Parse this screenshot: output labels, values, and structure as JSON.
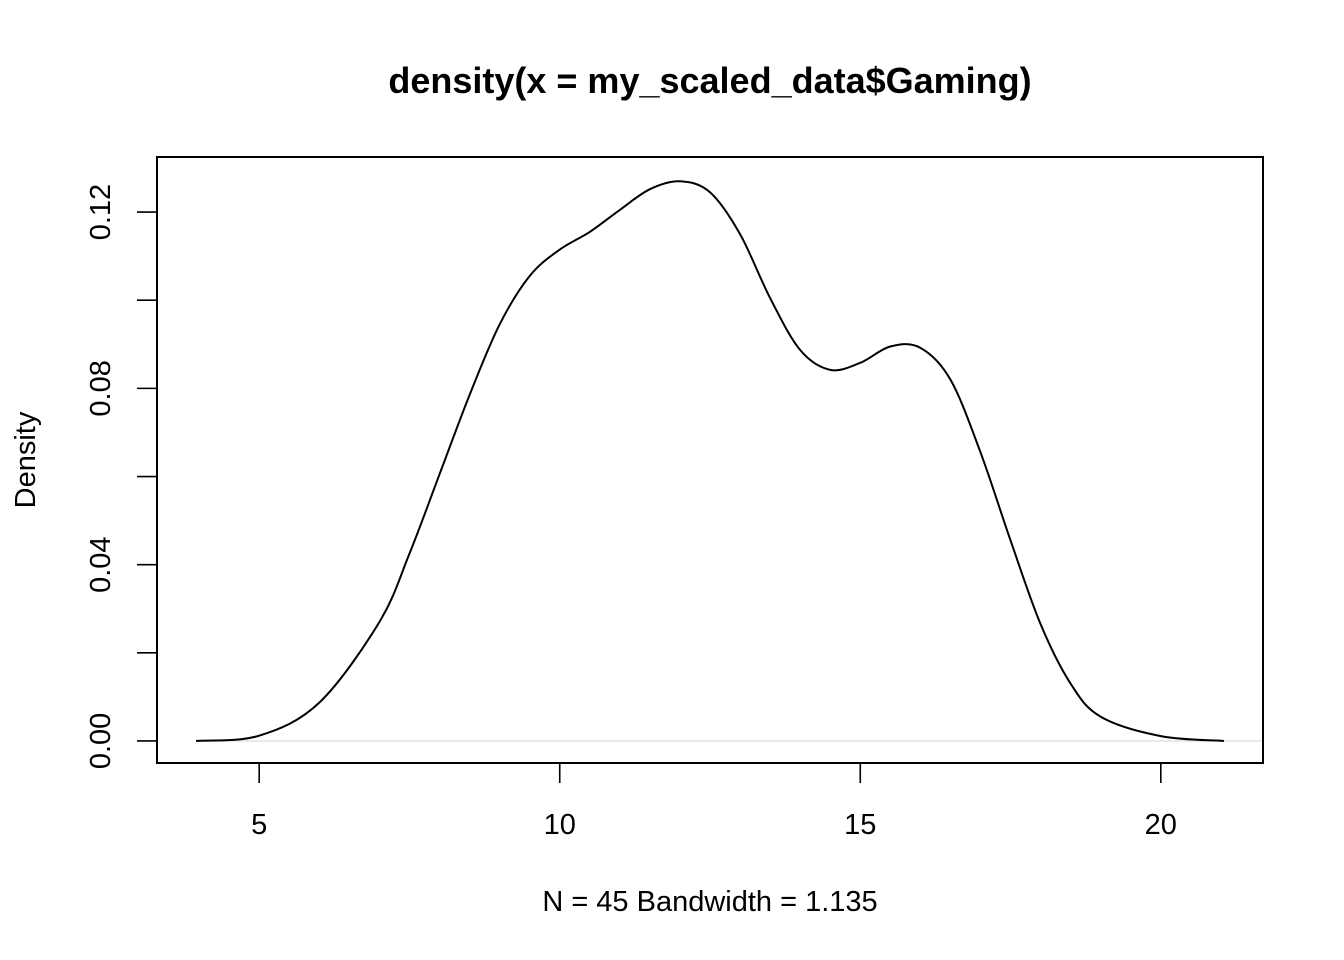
{
  "chart_data": {
    "type": "line",
    "title": "density(x = my_scaled_data$Gaming)",
    "xlabel": "N = 45   Bandwidth = 1.135",
    "ylabel": "Density",
    "xlim": [
      3.3,
      21.7
    ],
    "ylim": [
      -0.005,
      0.1325
    ],
    "x_ticks": [
      5,
      10,
      15,
      20
    ],
    "x_tick_labels": [
      "5",
      "10",
      "15",
      "20"
    ],
    "y_ticks": [
      0,
      0.02,
      0.04,
      0.06,
      0.08,
      0.1,
      0.12
    ],
    "y_tick_labels": [
      "0.00",
      "",
      "0.04",
      "",
      "0.08",
      "",
      "0.12"
    ],
    "grid": false,
    "zero_line": true,
    "series": [
      {
        "x": [
          3.95,
          5.0,
          6.0,
          7.0,
          7.5,
          8.0,
          8.5,
          9.0,
          9.5,
          10.0,
          10.5,
          11.0,
          11.5,
          12.0,
          12.5,
          13.0,
          13.5,
          14.0,
          14.5,
          15.0,
          15.5,
          16.0,
          16.5,
          17.0,
          17.5,
          18.0,
          18.5,
          19.0,
          20.0,
          21.05
        ],
        "y": [
          0.0,
          0.0012,
          0.0087,
          0.027,
          0.0425,
          0.0605,
          0.0785,
          0.0945,
          0.1055,
          0.1115,
          0.1155,
          0.1205,
          0.1252,
          0.127,
          0.1245,
          0.115,
          0.1005,
          0.0887,
          0.0842,
          0.0858,
          0.0895,
          0.0892,
          0.082,
          0.0655,
          0.0455,
          0.0265,
          0.013,
          0.0055,
          0.0011,
          0.0
        ]
      }
    ]
  }
}
